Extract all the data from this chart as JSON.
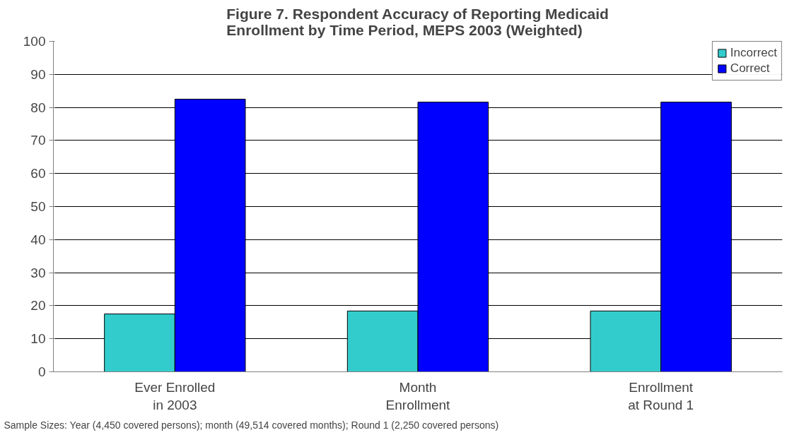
{
  "chart_data": {
    "type": "bar",
    "title": "Figure 7. Respondent Accuracy of Reporting Medicaid\nEnrollment by Time Period, MEPS 2003 (Weighted)",
    "categories": [
      "Ever Enrolled\nin 2003",
      "Month\nEnrollment",
      "Enrollment\nat Round 1"
    ],
    "series": [
      {
        "name": "Incorrect",
        "color": "#33cccc",
        "values": [
          17.5,
          18.4,
          18.4
        ]
      },
      {
        "name": "Correct",
        "color": "#0000ff",
        "values": [
          82.5,
          81.6,
          81.6
        ]
      }
    ],
    "ylim": [
      0,
      100
    ],
    "yticks": [
      0,
      10,
      20,
      30,
      40,
      50,
      60,
      70,
      80,
      90,
      100
    ],
    "grid": "y",
    "legend": "top right",
    "annotations": [
      "Sample Sizes: Year (4,450 covered persons); month (49,514 covered months); Round 1 (2,250 covered persons)"
    ]
  }
}
